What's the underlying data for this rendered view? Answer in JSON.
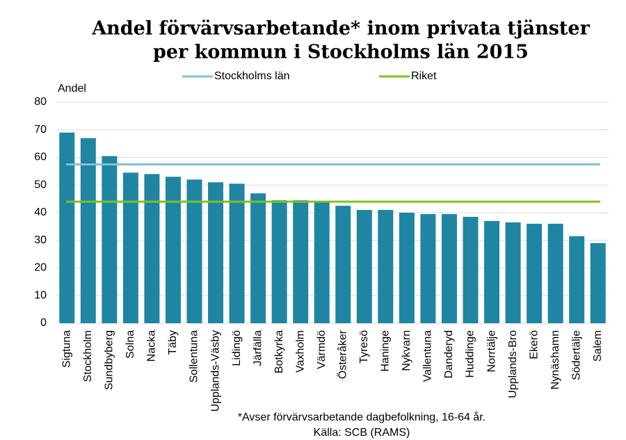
{
  "chart_data": {
    "type": "bar",
    "title": [
      "Andel förvärvsarbetande* inom privata tjänster",
      "per kommun i Stockholms län 2015"
    ],
    "y_label": "Andel",
    "categories": [
      "Sigtuna",
      "Stockholm",
      "Sundbyberg",
      "Solna",
      "Nacka",
      "Täby",
      "Sollentuna",
      "Upplands-Väsby",
      "Lidingö",
      "Järfälla",
      "Botkyrka",
      "Vaxholm",
      "Värmdö",
      "Österåker",
      "Tyresö",
      "Haninge",
      "Nykvarn",
      "Vallentuna",
      "Danderyd",
      "Huddinge",
      "Norrtälje",
      "Upplands-Bro",
      "Ekerö",
      "Nynäshamn",
      "Södertälje",
      "Salem"
    ],
    "values": [
      69,
      67,
      60.5,
      54.5,
      54,
      53,
      52,
      51,
      50.5,
      47,
      44.5,
      44.5,
      44,
      42.5,
      41,
      41,
      40,
      39.5,
      39.5,
      38.5,
      37,
      36.5,
      36,
      36,
      31.5,
      29
    ],
    "color": "#1f85a2",
    "reference_lines": [
      {
        "name": "Stockholms län",
        "color": "#84c1d2",
        "value": 57.5
      },
      {
        "name": "Riket",
        "color": "#7dc21e",
        "value": 44
      }
    ],
    "ylim": [
      0,
      80
    ],
    "yticks": [
      0,
      10,
      20,
      30,
      40,
      50,
      60,
      70,
      80
    ],
    "grid": true,
    "footnotes": [
      "*Avser förvärvsarbetande dagbefolkning,  16-64 år.",
      "Källa: SCB (RAMS)"
    ]
  }
}
